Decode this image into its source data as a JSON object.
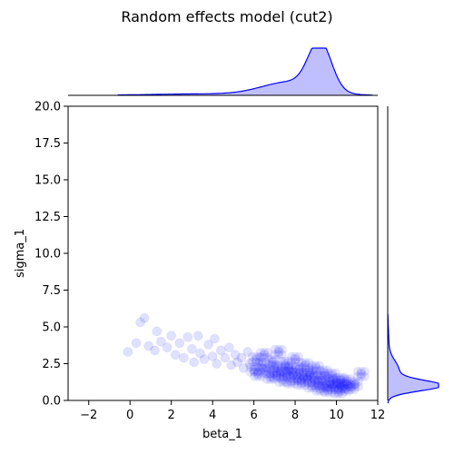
{
  "chart_data": {
    "type": "scatter",
    "title": "Random effects model (cut2)",
    "xlabel": "beta_1",
    "ylabel": "sigma_1",
    "xlim": [
      -3,
      12
    ],
    "ylim": [
      0,
      20
    ],
    "xticks": [
      "−2",
      "0",
      "2",
      "4",
      "6",
      "8",
      "10",
      "12"
    ],
    "xtick_values": [
      -2,
      0,
      2,
      4,
      6,
      8,
      10,
      12
    ],
    "yticks": [
      "0.0",
      "2.5",
      "5.0",
      "7.5",
      "10.0",
      "12.5",
      "15.0",
      "17.5",
      "20.0"
    ],
    "ytick_values": [
      0,
      2.5,
      5,
      7.5,
      10,
      12.5,
      15,
      17.5,
      20
    ],
    "grid": false,
    "legend": "none",
    "color": "#0000ff",
    "marginals": {
      "x": {
        "type": "kde",
        "peak": 9.2,
        "position": "top"
      },
      "y": {
        "type": "kde",
        "peak": 1.0,
        "position": "right"
      }
    },
    "series": [
      {
        "values": [
          {
            "x": -0.1,
            "y": 3.3
          },
          {
            "x": 0.3,
            "y": 3.9
          },
          {
            "x": 0.5,
            "y": 5.3
          },
          {
            "x": 0.7,
            "y": 5.6
          },
          {
            "x": 0.9,
            "y": 3.7
          },
          {
            "x": 1.2,
            "y": 3.4
          },
          {
            "x": 1.3,
            "y": 4.7
          },
          {
            "x": 1.5,
            "y": 4.0
          },
          {
            "x": 1.8,
            "y": 3.6
          },
          {
            "x": 2.0,
            "y": 4.4
          },
          {
            "x": 2.2,
            "y": 3.1
          },
          {
            "x": 2.4,
            "y": 3.9
          },
          {
            "x": 2.6,
            "y": 2.9
          },
          {
            "x": 2.8,
            "y": 4.3
          },
          {
            "x": 3.0,
            "y": 3.5
          },
          {
            "x": 3.1,
            "y": 2.6
          },
          {
            "x": 3.3,
            "y": 4.4
          },
          {
            "x": 3.4,
            "y": 3.2
          },
          {
            "x": 3.6,
            "y": 2.8
          },
          {
            "x": 3.8,
            "y": 3.8
          },
          {
            "x": 4.0,
            "y": 3.0
          },
          {
            "x": 4.1,
            "y": 4.2
          },
          {
            "x": 4.2,
            "y": 2.5
          },
          {
            "x": 4.4,
            "y": 3.4
          },
          {
            "x": 4.6,
            "y": 2.9
          },
          {
            "x": 4.8,
            "y": 3.6
          },
          {
            "x": 4.9,
            "y": 2.4
          },
          {
            "x": 5.1,
            "y": 3.1
          },
          {
            "x": 5.2,
            "y": 2.6
          },
          {
            "x": 5.4,
            "y": 2.9
          },
          {
            "x": 5.5,
            "y": 2.2
          },
          {
            "x": 5.7,
            "y": 3.3
          },
          {
            "x": 5.8,
            "y": 2.5
          },
          {
            "x": 6.0,
            "y": 2.1
          },
          {
            "x": 6.1,
            "y": 2.8
          },
          {
            "x": 6.2,
            "y": 1.8
          },
          {
            "x": 6.4,
            "y": 2.4
          },
          {
            "x": 6.5,
            "y": 3.1
          },
          {
            "x": 6.6,
            "y": 2.0
          },
          {
            "x": 6.8,
            "y": 1.6
          },
          {
            "x": 6.9,
            "y": 2.6
          },
          {
            "x": 7.0,
            "y": 2.2
          },
          {
            "x": 7.1,
            "y": 1.7
          },
          {
            "x": 7.2,
            "y": 3.3
          },
          {
            "x": 7.3,
            "y": 2.0
          },
          {
            "x": 7.4,
            "y": 1.4
          },
          {
            "x": 7.5,
            "y": 2.5
          },
          {
            "x": 7.6,
            "y": 1.8
          },
          {
            "x": 7.7,
            "y": 2.2
          },
          {
            "x": 7.8,
            "y": 1.3
          },
          {
            "x": 7.9,
            "y": 1.9
          },
          {
            "x": 8.0,
            "y": 2.8
          },
          {
            "x": 8.1,
            "y": 1.5
          },
          {
            "x": 8.2,
            "y": 2.1
          },
          {
            "x": 8.3,
            "y": 1.2
          },
          {
            "x": 8.4,
            "y": 1.7
          },
          {
            "x": 8.5,
            "y": 2.4
          },
          {
            "x": 8.6,
            "y": 1.4
          },
          {
            "x": 8.7,
            "y": 1.9
          },
          {
            "x": 8.8,
            "y": 1.0
          },
          {
            "x": 8.9,
            "y": 1.6
          },
          {
            "x": 9.0,
            "y": 2.2
          },
          {
            "x": 9.1,
            "y": 1.2
          },
          {
            "x": 9.2,
            "y": 0.8
          },
          {
            "x": 9.3,
            "y": 1.5
          },
          {
            "x": 9.4,
            "y": 1.9
          },
          {
            "x": 9.5,
            "y": 1.0
          },
          {
            "x": 9.6,
            "y": 0.7
          },
          {
            "x": 9.7,
            "y": 1.3
          },
          {
            "x": 9.8,
            "y": 1.7
          },
          {
            "x": 9.9,
            "y": 0.9
          },
          {
            "x": 10.0,
            "y": 1.2
          },
          {
            "x": 10.1,
            "y": 0.6
          },
          {
            "x": 10.2,
            "y": 1.4
          },
          {
            "x": 10.3,
            "y": 1.0
          },
          {
            "x": 10.4,
            "y": 0.8
          },
          {
            "x": 10.5,
            "y": 1.3
          },
          {
            "x": 10.7,
            "y": 0.9
          },
          {
            "x": 10.9,
            "y": 1.1
          },
          {
            "x": 11.2,
            "y": 1.8
          }
        ]
      }
    ]
  }
}
